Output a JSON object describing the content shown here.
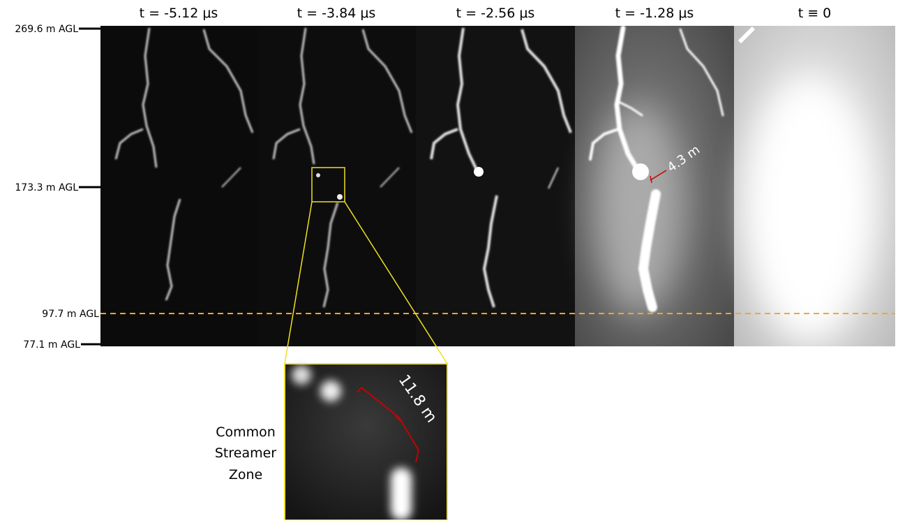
{
  "frames": [
    {
      "label": "t = -5.12 μs"
    },
    {
      "label": "t = -3.84 μs"
    },
    {
      "label": "t = -2.56 μs"
    },
    {
      "label": "t = -1.28 μs"
    },
    {
      "label": "t ≡ 0"
    }
  ],
  "heights": [
    "269.6 m AGL",
    "173.3 m AGL",
    "97.7 m AGL",
    "77.1 m AGL"
  ],
  "gap_annotation": "4.3 m",
  "inset_annotation": "11.8 m",
  "zone_label": [
    "Common",
    "Streamer",
    "Zone"
  ]
}
